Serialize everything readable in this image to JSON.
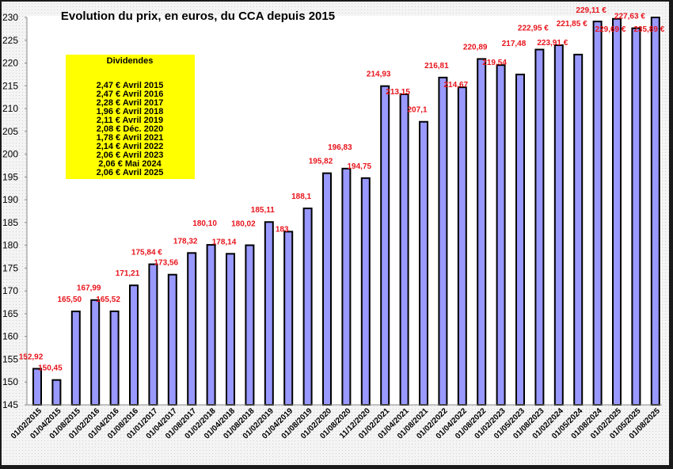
{
  "chart_data": {
    "type": "bar",
    "title": "Evolution du prix, en euros, du CCA depuis 2015",
    "xlabel": "",
    "ylabel": "",
    "ylim": [
      145,
      230
    ],
    "yticks": [
      145,
      150,
      155,
      160,
      165,
      170,
      175,
      180,
      185,
      190,
      195,
      200,
      205,
      210,
      215,
      220,
      225,
      230
    ],
    "grid": false,
    "bar_color": "#9999ff",
    "label_color": "#e8141c",
    "categories": [
      "01/02/2015",
      "01/04/2015",
      "01/08/2015",
      "01/02/2016",
      "01/04/2016",
      "01/08/2016",
      "01/01/2017",
      "01/04/2017",
      "01/08/2017",
      "01/02/2018",
      "01/04/2018",
      "01/08/2018",
      "01/02/2019",
      "01/04/2019",
      "01/08/2019",
      "01/02/2020",
      "01/08/2020",
      "11/12/2020",
      "01/02/2021",
      "01/04/2021",
      "01/08/2021",
      "01/02/2022",
      "01/04/2022",
      "01/08/2022",
      "01/02/2023",
      "01/05/2023",
      "01/08/2023",
      "01/02/2024",
      "01/05/2024",
      "01/08/2024",
      "01/02/2025",
      "01/05/2025",
      "01/08/2025"
    ],
    "values": [
      152.92,
      150.45,
      165.5,
      167.99,
      165.52,
      171.21,
      175.84,
      173.56,
      178.32,
      180.1,
      178.14,
      180.02,
      185.11,
      183,
      188.1,
      195.82,
      196.83,
      194.75,
      214.93,
      213.15,
      207.1,
      216.81,
      214.67,
      220.89,
      219.54,
      217.48,
      222.95,
      223.91,
      221.85,
      229.11,
      229.69,
      227.63,
      235.89
    ],
    "data_labels": [
      "152,92",
      "150,45",
      "165,50",
      "167,99",
      "165,52",
      "171,21",
      "175,84 €",
      "173,56",
      "178,32",
      "180,10",
      "178,14",
      "180,02",
      "185,11",
      "183",
      "188,1",
      "195,82",
      "196,83",
      "194,75",
      "214,93",
      "213,15",
      "207,1",
      "216,81",
      "214,67",
      "220,89",
      "219,54",
      "217,48",
      "222,95 €",
      "223,91 €",
      "221,85 €",
      "229,11 €",
      "229,69 €",
      "227,63 €",
      "235,89 €"
    ],
    "annotation": {
      "title": "Dividendes",
      "lines": [
        "2,47 € Avril 2015",
        "2,47 € Avril 2016",
        "2,28 € Avril 2017",
        "1,96 € Avril 2018",
        "2,11 € Avril 2019",
        "2,08 € Déc. 2020",
        "1,78 € Avril 2021",
        "2,14 € Avril 2022",
        "2,06 € Avril 2023",
        "2,06 € Mai 2024",
        "2,06 € Avril 2025"
      ],
      "background": "#ffff00"
    }
  }
}
